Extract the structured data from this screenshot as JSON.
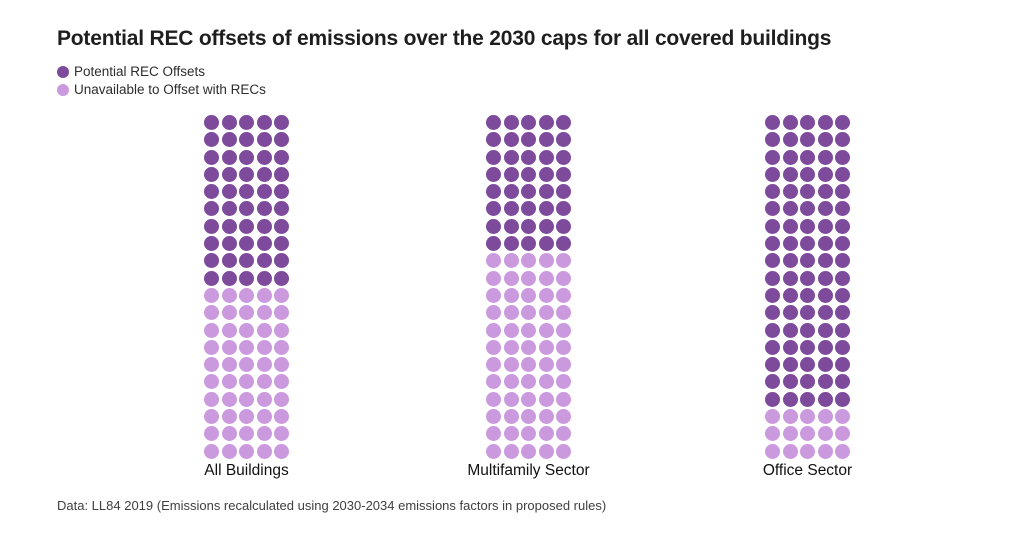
{
  "chart_data": {
    "type": "waffle",
    "title": "Potential REC offsets of emissions over the 2030 caps for all covered buildings",
    "categories": [
      "All Buildings",
      "Multifamily Sector",
      "Office Sector"
    ],
    "series": [
      {
        "name": "Potential REC Offsets",
        "color": "#7d4a9c",
        "values": [
          50,
          40,
          85
        ]
      },
      {
        "name": "Unavailable to Offset with RECs",
        "color": "#cb9ade",
        "values": [
          50,
          60,
          15
        ]
      }
    ],
    "grid": {
      "rows": 20,
      "columns": 5,
      "dots_per_category": 100
    },
    "legend_position": "top-left",
    "footnote": "Data: LL84 2019 (Emissions recalculated using 2030-2034 emissions factors in proposed rules)"
  }
}
